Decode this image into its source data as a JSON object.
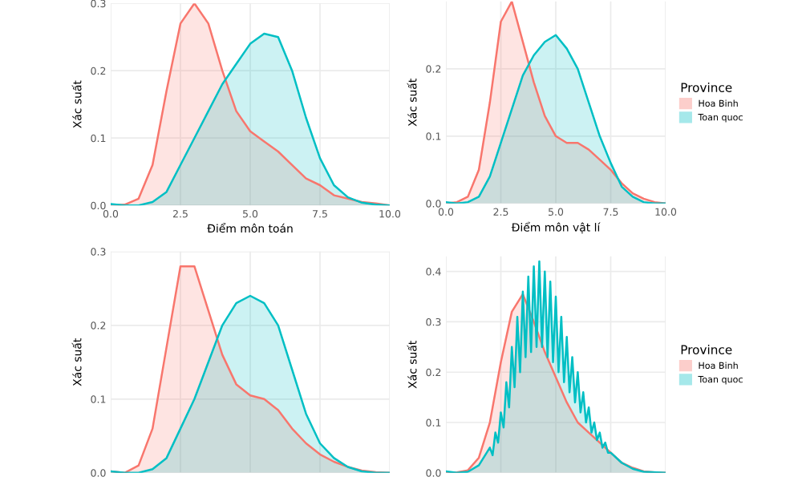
{
  "chart_data": [
    {
      "type": "area",
      "xlabel": "Điểm môn toán",
      "ylabel": "Xác suất",
      "xlim": [
        0,
        10
      ],
      "xticks": [
        {
          "value": 0,
          "label": "0.0"
        },
        {
          "value": 2.5,
          "label": "2.5"
        },
        {
          "value": 5,
          "label": "5.0"
        },
        {
          "value": 7.5,
          "label": "7.5"
        },
        {
          "value": 10,
          "label": "10.0"
        }
      ],
      "ylim": [
        0,
        0.3
      ],
      "yticks": [
        {
          "value": 0,
          "label": "0.0"
        },
        {
          "value": 0.1,
          "label": "0.1"
        },
        {
          "value": 0.2,
          "label": "0.2"
        },
        {
          "value": 0.3,
          "label": "0.3"
        }
      ],
      "grid": true,
      "legend": false,
      "x": [
        0,
        0.5,
        1,
        1.5,
        2,
        2.5,
        3,
        3.5,
        4,
        4.5,
        5,
        5.5,
        6,
        6.5,
        7,
        7.5,
        8,
        8.5,
        9,
        9.5,
        10
      ],
      "series": [
        {
          "color": "#f8766d",
          "values": [
            0,
            0.001,
            0.01,
            0.06,
            0.17,
            0.27,
            0.3,
            0.27,
            0.2,
            0.14,
            0.11,
            0.095,
            0.08,
            0.06,
            0.04,
            0.03,
            0.015,
            0.01,
            0.005,
            0.003,
            0
          ]
        },
        {
          "color": "#00bfc4",
          "values": [
            0.002,
            0,
            0,
            0.005,
            0.02,
            0.06,
            0.1,
            0.14,
            0.18,
            0.21,
            0.24,
            0.255,
            0.25,
            0.2,
            0.13,
            0.07,
            0.03,
            0.012,
            0.004,
            0.001,
            0
          ]
        }
      ]
    },
    {
      "type": "area",
      "xlabel": "Điểm môn vật lí",
      "ylabel": "Xác suất",
      "legend_title": "Province",
      "xlim": [
        0,
        10
      ],
      "xticks": [
        {
          "value": 0,
          "label": "0.0"
        },
        {
          "value": 2.5,
          "label": "2.5"
        },
        {
          "value": 5,
          "label": "5.0"
        },
        {
          "value": 7.5,
          "label": "7.5"
        },
        {
          "value": 10,
          "label": "10.0"
        }
      ],
      "ylim": [
        0,
        0.3
      ],
      "yticks": [
        {
          "value": 0,
          "label": "0.0"
        },
        {
          "value": 0.1,
          "label": "0.1"
        },
        {
          "value": 0.2,
          "label": "0.2"
        }
      ],
      "grid": true,
      "legend": "right",
      "x": [
        0,
        0.5,
        1,
        1.5,
        2,
        2.5,
        3,
        3.5,
        4,
        4.5,
        5,
        5.5,
        6,
        6.5,
        7,
        7.5,
        8,
        8.5,
        9,
        9.5,
        10
      ],
      "series": [
        {
          "name": "Hoa Binh",
          "color": "#f8766d",
          "values": [
            0,
            0.002,
            0.01,
            0.05,
            0.15,
            0.27,
            0.3,
            0.24,
            0.18,
            0.13,
            0.1,
            0.09,
            0.09,
            0.08,
            0.065,
            0.05,
            0.03,
            0.015,
            0.007,
            0.002,
            0
          ]
        },
        {
          "name": "Toan quoc",
          "color": "#00bfc4",
          "values": [
            0.002,
            0,
            0.002,
            0.01,
            0.04,
            0.09,
            0.14,
            0.19,
            0.22,
            0.24,
            0.25,
            0.23,
            0.2,
            0.15,
            0.1,
            0.06,
            0.025,
            0.01,
            0.002,
            0,
            0
          ]
        }
      ]
    },
    {
      "type": "area",
      "ylabel": "Xác suất",
      "xlim": [
        0,
        10
      ],
      "xticks": [
        {
          "value": 0,
          "label": null
        },
        {
          "value": 2.5,
          "label": null
        },
        {
          "value": 5,
          "label": null
        },
        {
          "value": 7.5,
          "label": null
        },
        {
          "value": 10,
          "label": null
        }
      ],
      "ylim": [
        0,
        0.3
      ],
      "yticks": [
        {
          "value": 0,
          "label": "0.0"
        },
        {
          "value": 0.1,
          "label": "0.1"
        },
        {
          "value": 0.2,
          "label": "0.2"
        },
        {
          "value": 0.3,
          "label": "0.3"
        }
      ],
      "tick_labels": "y",
      "grid": true,
      "legend": false,
      "x": [
        0,
        0.5,
        1,
        1.5,
        2,
        2.5,
        3,
        3.5,
        4,
        4.5,
        5,
        5.5,
        6,
        6.5,
        7,
        7.5,
        8,
        8.5,
        9,
        9.5,
        10
      ],
      "series": [
        {
          "color": "#f8766d",
          "values": [
            0.002,
            0,
            0.01,
            0.06,
            0.17,
            0.28,
            0.28,
            0.22,
            0.16,
            0.12,
            0.105,
            0.1,
            0.085,
            0.06,
            0.04,
            0.025,
            0.015,
            0.008,
            0.003,
            0.001,
            0
          ]
        },
        {
          "color": "#00bfc4",
          "values": [
            0.002,
            0,
            0,
            0.005,
            0.02,
            0.06,
            0.1,
            0.15,
            0.2,
            0.23,
            0.24,
            0.23,
            0.2,
            0.14,
            0.08,
            0.04,
            0.02,
            0.008,
            0.002,
            0,
            0
          ]
        }
      ]
    },
    {
      "type": "area",
      "ylabel": "Xác suất",
      "legend_title": "Province",
      "xlim": [
        0,
        10
      ],
      "xticks": [
        {
          "value": 0,
          "label": null
        },
        {
          "value": 2.5,
          "label": null
        },
        {
          "value": 5,
          "label": null
        },
        {
          "value": 7.5,
          "label": null
        },
        {
          "value": 10,
          "label": null
        }
      ],
      "ylim": [
        0,
        0.43
      ],
      "yticks": [
        {
          "value": 0,
          "label": "0.0"
        },
        {
          "value": 0.1,
          "label": "0.1"
        },
        {
          "value": 0.2,
          "label": "0.2"
        },
        {
          "value": 0.3,
          "label": "0.3"
        },
        {
          "value": 0.4,
          "label": "0.4"
        }
      ],
      "tick_labels": "y",
      "grid": true,
      "legend": "right",
      "series": [
        {
          "name": "Hoa Binh",
          "color": "#f8766d",
          "x": [
            0,
            0.5,
            1,
            1.5,
            2,
            2.5,
            3,
            3.5,
            4,
            4.5,
            5,
            5.5,
            6,
            6.5,
            7,
            7.5,
            8,
            8.5,
            9,
            9.5,
            10
          ],
          "values": [
            0,
            0.001,
            0.005,
            0.03,
            0.1,
            0.22,
            0.32,
            0.355,
            0.3,
            0.24,
            0.19,
            0.14,
            0.1,
            0.08,
            0.06,
            0.04,
            0.02,
            0.01,
            0.003,
            0.001,
            0
          ]
        },
        {
          "name": "Toan quoc",
          "color": "#00bfc4",
          "x": [
            0,
            0.5,
            1,
            1.5,
            2,
            2.125,
            2.25,
            2.375,
            2.5,
            2.625,
            2.75,
            2.875,
            3,
            3.125,
            3.25,
            3.375,
            3.5,
            3.625,
            3.75,
            3.875,
            4,
            4.125,
            4.25,
            4.375,
            4.5,
            4.625,
            4.75,
            4.875,
            5,
            5.125,
            5.25,
            5.375,
            5.5,
            5.625,
            5.75,
            5.875,
            6,
            6.125,
            6.25,
            6.375,
            6.5,
            6.625,
            6.75,
            6.875,
            7,
            7.125,
            7.25,
            7.375,
            7.5,
            8,
            8.5,
            9,
            10
          ],
          "values": [
            0.003,
            0,
            0.002,
            0.015,
            0.05,
            0.035,
            0.08,
            0.06,
            0.12,
            0.09,
            0.18,
            0.13,
            0.25,
            0.17,
            0.31,
            0.2,
            0.36,
            0.23,
            0.39,
            0.24,
            0.41,
            0.25,
            0.42,
            0.25,
            0.4,
            0.23,
            0.38,
            0.22,
            0.35,
            0.2,
            0.31,
            0.18,
            0.27,
            0.16,
            0.23,
            0.14,
            0.2,
            0.12,
            0.16,
            0.1,
            0.13,
            0.08,
            0.1,
            0.065,
            0.08,
            0.05,
            0.06,
            0.04,
            0.04,
            0.02,
            0.008,
            0.002,
            0
          ]
        }
      ]
    }
  ]
}
